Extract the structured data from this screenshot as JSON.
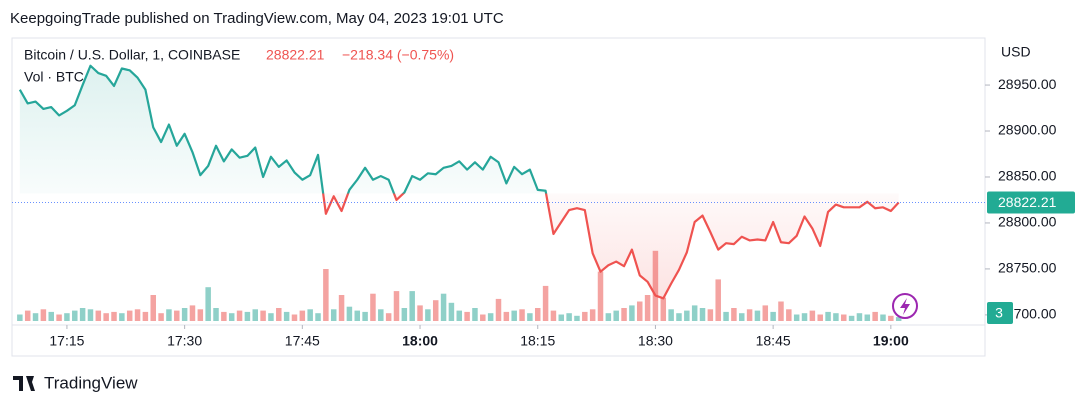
{
  "header": "KeepgoingTrade published on TradingView.com, May 04, 2023 19:01 UTC",
  "footer": "TradingView",
  "chart_data": {
    "type": "baseline",
    "title": "Bitcoin / U.S. Dollar, 1, COINBASE",
    "change": "−218.34 (−0.75%)",
    "volume_title": "Vol · BTC",
    "y_axis_label": "USD",
    "baseline": 28832,
    "top_color": "#26a69a",
    "bottom_color": "#ef5350",
    "x": [
      "17:09",
      "17:10",
      "17:11",
      "17:12",
      "17:13",
      "17:14",
      "17:15",
      "17:16",
      "17:17",
      "17:18",
      "17:19",
      "17:20",
      "17:21",
      "17:22",
      "17:23",
      "17:24",
      "17:25",
      "17:26",
      "17:27",
      "17:28",
      "17:29",
      "17:30",
      "17:31",
      "17:32",
      "17:33",
      "17:34",
      "17:35",
      "17:36",
      "17:37",
      "17:38",
      "17:39",
      "17:40",
      "17:41",
      "17:42",
      "17:43",
      "17:44",
      "17:45",
      "17:46",
      "17:47",
      "17:48",
      "17:49",
      "17:50",
      "17:51",
      "17:52",
      "17:53",
      "17:54",
      "17:55",
      "17:56",
      "17:57",
      "17:58",
      "17:59",
      "18:00",
      "18:01",
      "18:02",
      "18:03",
      "18:04",
      "18:05",
      "18:06",
      "18:07",
      "18:08",
      "18:09",
      "18:10",
      "18:11",
      "18:12",
      "18:13",
      "18:14",
      "18:15",
      "18:16",
      "18:17",
      "18:18",
      "18:19",
      "18:20",
      "18:21",
      "18:22",
      "18:23",
      "18:24",
      "18:25",
      "18:26",
      "18:27",
      "18:28",
      "18:29",
      "18:30",
      "18:31",
      "18:32",
      "18:33",
      "18:34",
      "18:35",
      "18:36",
      "18:37",
      "18:38",
      "18:39",
      "18:40",
      "18:41",
      "18:42",
      "18:43",
      "18:44",
      "18:45",
      "18:46",
      "18:47",
      "18:48",
      "18:49",
      "18:50",
      "18:51",
      "18:52",
      "18:53",
      "18:54",
      "18:55",
      "18:56",
      "18:57",
      "18:58",
      "18:59",
      "19:00",
      "19:01"
    ],
    "series": [
      {
        "name": "Bitcoin / U.S. Dollar",
        "values": [
          28945,
          28930,
          28932,
          28924,
          28926,
          28917,
          28922,
          28928,
          28950,
          28971,
          28963,
          28960,
          28949,
          28968,
          28966,
          28958,
          28945,
          28904,
          28888,
          28907,
          28884,
          28897,
          28877,
          28852,
          28862,
          28884,
          28867,
          28880,
          28871,
          28873,
          28882,
          28850,
          28872,
          28861,
          28868,
          28855,
          28847,
          28852,
          28874,
          28810,
          28829,
          28813,
          28836,
          28847,
          28860,
          28847,
          28851,
          28847,
          28825,
          28833,
          28851,
          28847,
          28854,
          28853,
          28860,
          28862,
          28867,
          28858,
          28866,
          28858,
          28872,
          28866,
          28843,
          28861,
          28853,
          28858,
          28836,
          28835,
          28788,
          28801,
          28814,
          28816,
          28814,
          28767,
          28747,
          28754,
          28758,
          28753,
          28771,
          28743,
          28736,
          28721,
          28718,
          28734,
          28749,
          28768,
          28801,
          28808,
          28790,
          28771,
          28778,
          28777,
          28785,
          28781,
          28782,
          28781,
          28801,
          28779,
          28778,
          28786,
          28807,
          28794,
          28775,
          28812,
          28820,
          28817,
          28817,
          28817,
          28823,
          28816,
          28817,
          28813,
          28822.21
        ]
      },
      {
        "name": "Vol",
        "up_color": "#8fd0c8",
        "down_color": "#f4a3a1",
        "values": [
          5,
          8,
          6,
          9,
          7,
          5,
          6,
          8,
          10,
          9,
          8,
          6,
          7,
          6,
          8,
          9,
          7,
          20,
          6,
          9,
          8,
          10,
          12,
          9,
          26,
          10,
          7,
          6,
          8,
          7,
          9,
          8,
          6,
          10,
          7,
          5,
          8,
          9,
          6,
          40,
          9,
          20,
          11,
          8,
          7,
          21,
          9,
          6,
          23,
          10,
          23,
          12,
          9,
          16,
          21,
          14,
          8,
          7,
          10,
          5,
          6,
          17,
          7,
          8,
          9,
          6,
          10,
          27,
          8,
          5,
          6,
          4,
          7,
          9,
          38,
          6,
          8,
          10,
          12,
          15,
          20,
          54,
          18,
          9,
          6,
          8,
          12,
          10,
          9,
          32,
          7,
          10,
          6,
          9,
          8,
          12,
          7,
          15,
          9,
          5,
          6,
          8,
          5,
          7,
          6,
          5,
          4,
          6,
          5,
          7,
          5,
          4,
          3
        ]
      }
    ],
    "xlim": [
      "17:08",
      "19:12"
    ],
    "xticks": [
      "17:15",
      "17:30",
      "17:45",
      "18:00",
      "18:15",
      "18:30",
      "18:45",
      "19:00"
    ],
    "bold_xticks": [
      "18:00",
      "19:00"
    ],
    "ylim": [
      28689,
      28999
    ],
    "yticks": [
      {
        "value": 28700,
        "label": "28700.00"
      },
      {
        "value": 28750,
        "label": "28750.00"
      },
      {
        "value": 28800,
        "label": "28800.00"
      },
      {
        "value": 28850,
        "label": "28850.00"
      },
      {
        "value": 28900,
        "label": "28900.00"
      },
      {
        "value": 28950,
        "label": "28950.00"
      }
    ]
  }
}
